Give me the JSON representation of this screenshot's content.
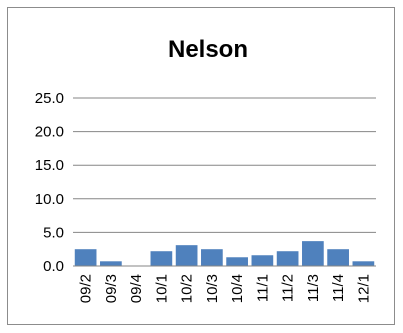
{
  "chart_data": {
    "type": "bar",
    "title": "Nelson",
    "xlabel": "",
    "ylabel": "",
    "categories": [
      "09/2",
      "09/3",
      "09/4",
      "10/1",
      "10/2",
      "10/3",
      "10/4",
      "11/1",
      "11/2",
      "11/3",
      "11/4",
      "12/1"
    ],
    "values": [
      2.5,
      0.7,
      0,
      2.2,
      3.1,
      2.5,
      1.3,
      1.6,
      2.2,
      3.7,
      2.5,
      0.7
    ],
    "ylim": [
      0,
      25
    ],
    "yticks": [
      "0.0",
      "5.0",
      "10.0",
      "15.0",
      "20.0",
      "25.0"
    ],
    "grid": true,
    "legend": "none",
    "colors": {
      "bar": "#4f81bd",
      "grid": "#868686",
      "axis": "#868686"
    }
  }
}
